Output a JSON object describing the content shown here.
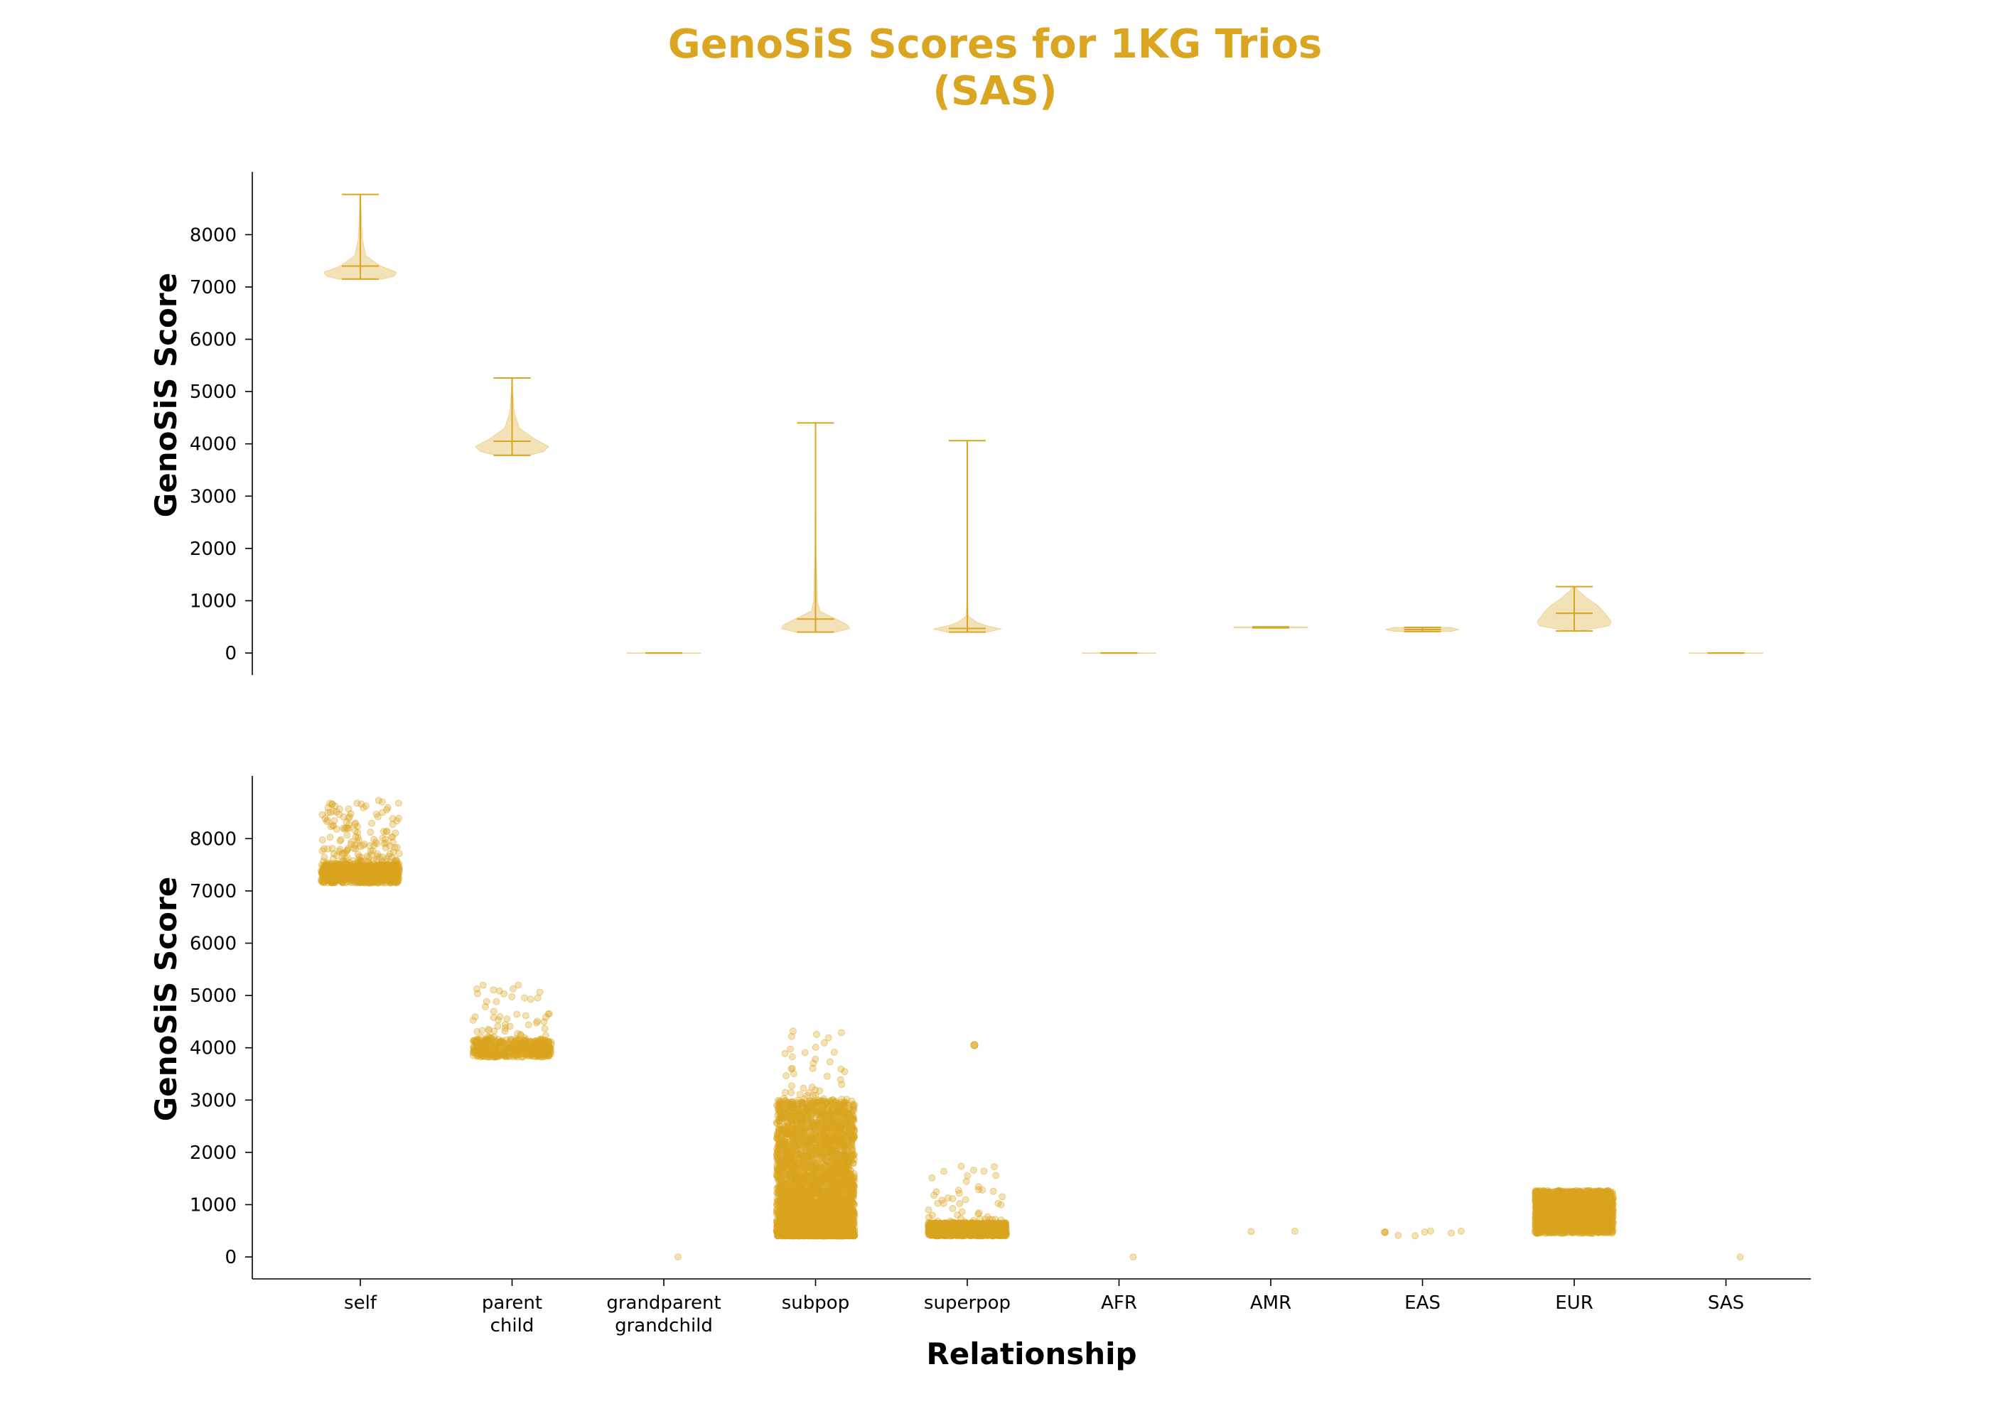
{
  "figure": {
    "title_line1": "GenoSiS Scores for 1KG Trios",
    "title_line2": "(SAS)",
    "accent_color": "#DAA520"
  },
  "chart_data": [
    {
      "type": "violin",
      "ylabel": "GenoSiS Score",
      "xlabel": "",
      "ylim": [
        -420,
        9200
      ],
      "yticks": [
        0,
        1000,
        2000,
        3000,
        4000,
        5000,
        6000,
        7000,
        8000
      ],
      "categories": [
        "self",
        "parent\nchild",
        "grandparent\ngrandchild",
        "subpop",
        "superpop",
        "AFR",
        "AMR",
        "EAS",
        "EUR",
        "SAS"
      ],
      "violins": [
        {
          "category": "self",
          "min": 7150,
          "max": 8770,
          "mean": 7400,
          "profile": [
            [
              7150,
              0.6
            ],
            [
              7200,
              0.9
            ],
            [
              7280,
              1.0
            ],
            [
              7400,
              0.55
            ],
            [
              7600,
              0.15
            ],
            [
              7900,
              0.06
            ],
            [
              8300,
              0.03
            ],
            [
              8770,
              0.01
            ]
          ]
        },
        {
          "category": "parent\nchild",
          "min": 3780,
          "max": 5260,
          "mean": 4050,
          "profile": [
            [
              3780,
              0.45
            ],
            [
              3850,
              0.85
            ],
            [
              3950,
              1.0
            ],
            [
              4100,
              0.6
            ],
            [
              4300,
              0.2
            ],
            [
              4600,
              0.06
            ],
            [
              5000,
              0.02
            ],
            [
              5260,
              0.01
            ]
          ]
        },
        {
          "category": "grandparent\ngrandchild",
          "min": 0,
          "max": 0,
          "mean": 0,
          "profile": [
            [
              -5,
              1.0
            ],
            [
              5,
              1.0
            ]
          ]
        },
        {
          "category": "subpop",
          "min": 400,
          "max": 4400,
          "mean": 650,
          "profile": [
            [
              400,
              0.55
            ],
            [
              480,
              1.0
            ],
            [
              600,
              0.7
            ],
            [
              800,
              0.12
            ],
            [
              1000,
              0.05
            ],
            [
              2000,
              0.015
            ],
            [
              3000,
              0.008
            ],
            [
              4400,
              0.002
            ]
          ]
        },
        {
          "category": "superpop",
          "min": 400,
          "max": 4060,
          "mean": 470,
          "profile": [
            [
              400,
              0.55
            ],
            [
              450,
              1.0
            ],
            [
              550,
              0.35
            ],
            [
              700,
              0.03
            ],
            [
              1000,
              0.01
            ],
            [
              2000,
              0.004
            ],
            [
              4060,
              0.001
            ]
          ]
        },
        {
          "category": "AFR",
          "min": 0,
          "max": 0,
          "mean": 0,
          "profile": [
            [
              -5,
              1.0
            ],
            [
              5,
              1.0
            ]
          ]
        },
        {
          "category": "AMR",
          "min": 480,
          "max": 500,
          "mean": 490,
          "profile": [
            [
              480,
              1.0
            ],
            [
              500,
              1.0
            ]
          ]
        },
        {
          "category": "EAS",
          "min": 410,
          "max": 490,
          "mean": 450,
          "profile": [
            [
              410,
              0.75
            ],
            [
              450,
              1.0
            ],
            [
              490,
              0.75
            ]
          ]
        },
        {
          "category": "EUR",
          "min": 420,
          "max": 1270,
          "mean": 760,
          "profile": [
            [
              420,
              0.15
            ],
            [
              520,
              0.95
            ],
            [
              600,
              1.0
            ],
            [
              750,
              0.85
            ],
            [
              900,
              0.65
            ],
            [
              1050,
              0.35
            ],
            [
              1200,
              0.1
            ],
            [
              1270,
              0.02
            ]
          ]
        },
        {
          "category": "SAS",
          "min": 0,
          "max": 0,
          "mean": 0,
          "profile": [
            [
              -5,
              1.0
            ],
            [
              5,
              1.0
            ]
          ]
        }
      ]
    },
    {
      "type": "scatter",
      "ylabel": "GenoSiS Score",
      "xlabel": "Relationship",
      "ylim": [
        -420,
        9200
      ],
      "yticks": [
        0,
        1000,
        2000,
        3000,
        4000,
        5000,
        6000,
        7000,
        8000
      ],
      "categories": [
        "self",
        "parent\nchild",
        "grandparent\ngrandchild",
        "subpop",
        "superpop",
        "AFR",
        "AMR",
        "EAS",
        "EUR",
        "SAS"
      ],
      "groups": [
        {
          "category": "self",
          "n": 900,
          "core_min": 7150,
          "core_max": 7500,
          "tail_max": 8770,
          "tail_fraction": 0.22
        },
        {
          "category": "parent\nchild",
          "n": 500,
          "core_min": 3820,
          "core_max": 4150,
          "tail_max": 5260,
          "tail_fraction": 0.15
        },
        {
          "category": "grandparent\ngrandchild",
          "n": 1,
          "core_min": 0,
          "core_max": 0,
          "tail_max": 0,
          "tail_fraction": 0
        },
        {
          "category": "subpop",
          "n": 3500,
          "core_min": 400,
          "core_max": 3000,
          "tail_max": 4400,
          "tail_fraction": 0.01
        },
        {
          "category": "superpop",
          "n": 1500,
          "core_min": 400,
          "core_max": 650,
          "tail_max": 1800,
          "tail_fraction": 0.03
        },
        {
          "category": "AFR",
          "n": 1,
          "core_min": 0,
          "core_max": 0,
          "tail_max": 0,
          "tail_fraction": 0
        },
        {
          "category": "AMR",
          "n": 2,
          "core_min": 480,
          "core_max": 500,
          "tail_max": 500,
          "tail_fraction": 0
        },
        {
          "category": "EAS",
          "n": 9,
          "core_min": 400,
          "core_max": 500,
          "tail_max": 500,
          "tail_fraction": 0
        },
        {
          "category": "EUR",
          "n": 2000,
          "core_min": 450,
          "core_max": 1270,
          "tail_max": 1270,
          "tail_fraction": 0
        },
        {
          "category": "SAS",
          "n": 1,
          "core_min": 0,
          "core_max": 0,
          "tail_max": 0,
          "tail_fraction": 0
        }
      ],
      "outliers": [
        {
          "category": "superpop",
          "value": 4050
        }
      ]
    }
  ]
}
